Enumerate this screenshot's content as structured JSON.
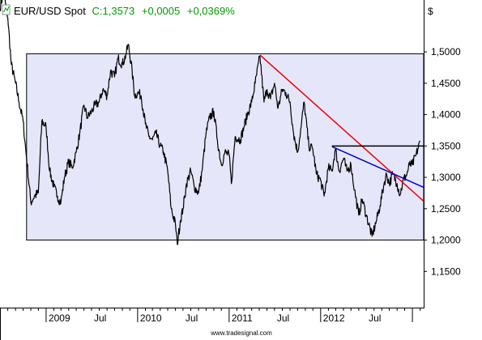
{
  "chart_data": {
    "type": "line",
    "title": {
      "symbol": "EUR/USD Spot",
      "close": "C:1,3573",
      "change": "+0,0005",
      "change_pct": "+0,0369%"
    },
    "currency_label": "$",
    "watermark": "www.tradesignal.com",
    "x_labels": [
      "2009",
      "Jul",
      "2010",
      "Jul",
      "2011",
      "Jul",
      "2012",
      "Jul"
    ],
    "y_ticks": [
      {
        "value": 1.15,
        "label": "1,1500"
      },
      {
        "value": 1.2,
        "label": "1,2000"
      },
      {
        "value": 1.25,
        "label": "1,2500"
      },
      {
        "value": 1.3,
        "label": "1,3000"
      },
      {
        "value": 1.35,
        "label": "1,3500"
      },
      {
        "value": 1.4,
        "label": "1,4000"
      },
      {
        "value": 1.45,
        "label": "1,4500"
      },
      {
        "value": 1.5,
        "label": "1,5000"
      }
    ],
    "ylim": [
      1.0923,
      1.5827
    ],
    "xlim": [
      "2008-07-01",
      "2013-02-15"
    ],
    "colors": {
      "price": "#000000",
      "range_fill": "#e6e6fa",
      "red_trendline": "#ee0000",
      "blue_trendline": "#0000cc",
      "horizontal_level": "#000000",
      "change_text": "#009900"
    },
    "series": [
      {
        "points": [
          [
            "2008-07-01",
            1.57
          ],
          [
            "2008-07-15",
            1.595
          ],
          [
            "2008-08-01",
            1.555
          ],
          [
            "2008-08-15",
            1.48
          ],
          [
            "2008-09-01",
            1.45
          ],
          [
            "2008-09-15",
            1.42
          ],
          [
            "2008-10-01",
            1.39
          ],
          [
            "2008-10-15",
            1.33
          ],
          [
            "2008-11-01",
            1.26
          ],
          [
            "2008-11-15",
            1.27
          ],
          [
            "2008-12-01",
            1.275
          ],
          [
            "2008-12-15",
            1.39
          ],
          [
            "2009-01-01",
            1.38
          ],
          [
            "2009-01-15",
            1.31
          ],
          [
            "2009-02-01",
            1.285
          ],
          [
            "2009-02-15",
            1.27
          ],
          [
            "2009-03-01",
            1.26
          ],
          [
            "2009-03-15",
            1.3
          ],
          [
            "2009-04-01",
            1.325
          ],
          [
            "2009-04-15",
            1.315
          ],
          [
            "2009-05-01",
            1.34
          ],
          [
            "2009-05-15",
            1.37
          ],
          [
            "2009-06-01",
            1.415
          ],
          [
            "2009-06-15",
            1.395
          ],
          [
            "2009-07-01",
            1.405
          ],
          [
            "2009-07-15",
            1.415
          ],
          [
            "2009-08-01",
            1.42
          ],
          [
            "2009-08-15",
            1.44
          ],
          [
            "2009-09-01",
            1.43
          ],
          [
            "2009-09-15",
            1.47
          ],
          [
            "2009-10-01",
            1.46
          ],
          [
            "2009-10-15",
            1.49
          ],
          [
            "2009-11-01",
            1.48
          ],
          [
            "2009-11-15",
            1.495
          ],
          [
            "2009-11-25",
            1.512
          ],
          [
            "2009-12-10",
            1.47
          ],
          [
            "2009-12-20",
            1.43
          ],
          [
            "2010-01-01",
            1.435
          ],
          [
            "2010-01-15",
            1.43
          ],
          [
            "2010-02-01",
            1.385
          ],
          [
            "2010-02-15",
            1.365
          ],
          [
            "2010-03-01",
            1.36
          ],
          [
            "2010-03-15",
            1.37
          ],
          [
            "2010-04-01",
            1.35
          ],
          [
            "2010-04-15",
            1.34
          ],
          [
            "2010-05-01",
            1.31
          ],
          [
            "2010-05-15",
            1.25
          ],
          [
            "2010-06-01",
            1.225
          ],
          [
            "2010-06-08",
            1.193
          ],
          [
            "2010-06-20",
            1.23
          ],
          [
            "2010-07-01",
            1.25
          ],
          [
            "2010-07-15",
            1.29
          ],
          [
            "2010-08-01",
            1.31
          ],
          [
            "2010-08-15",
            1.285
          ],
          [
            "2010-09-01",
            1.275
          ],
          [
            "2010-09-15",
            1.31
          ],
          [
            "2010-10-01",
            1.37
          ],
          [
            "2010-10-15",
            1.395
          ],
          [
            "2010-11-01",
            1.405
          ],
          [
            "2010-11-15",
            1.36
          ],
          [
            "2010-12-01",
            1.32
          ],
          [
            "2010-12-15",
            1.34
          ],
          [
            "2011-01-01",
            1.335
          ],
          [
            "2011-01-10",
            1.29
          ],
          [
            "2011-01-25",
            1.365
          ],
          [
            "2011-02-15",
            1.36
          ],
          [
            "2011-03-01",
            1.38
          ],
          [
            "2011-03-15",
            1.4
          ],
          [
            "2011-04-01",
            1.42
          ],
          [
            "2011-04-15",
            1.45
          ],
          [
            "2011-05-04",
            1.494
          ],
          [
            "2011-05-20",
            1.42
          ],
          [
            "2011-06-01",
            1.44
          ],
          [
            "2011-06-15",
            1.425
          ],
          [
            "2011-07-01",
            1.45
          ],
          [
            "2011-07-15",
            1.41
          ],
          [
            "2011-08-01",
            1.44
          ],
          [
            "2011-08-15",
            1.435
          ],
          [
            "2011-09-01",
            1.42
          ],
          [
            "2011-09-15",
            1.37
          ],
          [
            "2011-10-01",
            1.34
          ],
          [
            "2011-10-15",
            1.38
          ],
          [
            "2011-10-27",
            1.42
          ],
          [
            "2011-11-15",
            1.35
          ],
          [
            "2011-12-01",
            1.345
          ],
          [
            "2011-12-15",
            1.305
          ],
          [
            "2012-01-01",
            1.295
          ],
          [
            "2012-01-15",
            1.27
          ],
          [
            "2012-02-01",
            1.315
          ],
          [
            "2012-02-15",
            1.31
          ],
          [
            "2012-02-29",
            1.345
          ],
          [
            "2012-03-15",
            1.31
          ],
          [
            "2012-04-01",
            1.33
          ],
          [
            "2012-04-15",
            1.31
          ],
          [
            "2012-05-01",
            1.32
          ],
          [
            "2012-05-15",
            1.28
          ],
          [
            "2012-06-01",
            1.24
          ],
          [
            "2012-06-15",
            1.265
          ],
          [
            "2012-07-01",
            1.24
          ],
          [
            "2012-07-24",
            1.206
          ],
          [
            "2012-08-10",
            1.23
          ],
          [
            "2012-08-25",
            1.255
          ],
          [
            "2012-09-10",
            1.29
          ],
          [
            "2012-09-20",
            1.305
          ],
          [
            "2012-10-01",
            1.29
          ],
          [
            "2012-10-15",
            1.305
          ],
          [
            "2012-11-01",
            1.29
          ],
          [
            "2012-11-13",
            1.272
          ],
          [
            "2012-11-25",
            1.295
          ],
          [
            "2012-12-10",
            1.305
          ],
          [
            "2012-12-20",
            1.32
          ],
          [
            "2013-01-01",
            1.32
          ],
          [
            "2013-01-15",
            1.335
          ],
          [
            "2013-02-01",
            1.357
          ]
        ]
      }
    ],
    "annotations": {
      "range_box": {
        "x_start": "2008-10-15",
        "x_end": "2013-02-15",
        "y_low": 1.2,
        "y_high": 1.497
      },
      "horizontal_level": {
        "x_start": "2012-02-15",
        "x_end": "2013-02-15",
        "y": 1.35
      },
      "red_trendline": {
        "x_start": "2011-05-04",
        "y_start": 1.495,
        "x_end": "2013-02-15",
        "y_end": 1.262
      },
      "blue_trendline": {
        "x_start": "2012-02-15",
        "y_start": 1.349,
        "x_end": "2013-02-15",
        "y_end": 1.284
      }
    }
  }
}
